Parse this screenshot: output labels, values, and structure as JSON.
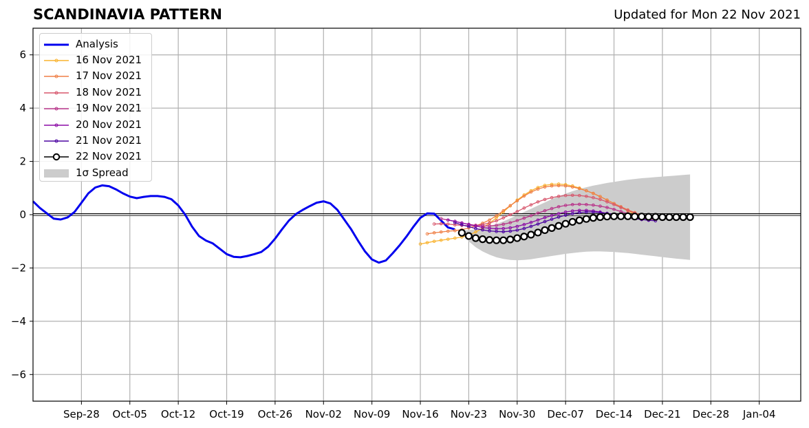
{
  "title": "SCANDINAVIA PATTERN",
  "subtitle": "Updated for Mon 22 Nov 2021",
  "chart_data": {
    "type": "line",
    "xlim": [
      "2021-09-21",
      "2022-01-10"
    ],
    "ylim": [
      -7,
      7
    ],
    "x_ticks": [
      "Sep-28",
      "Oct-05",
      "Oct-12",
      "Oct-19",
      "Oct-26",
      "Nov-02",
      "Nov-09",
      "Nov-16",
      "Nov-23",
      "Nov-30",
      "Dec-07",
      "Dec-14",
      "Dec-21",
      "Dec-28",
      "Jan-04"
    ],
    "x_tick_dates": [
      "2021-09-28",
      "2021-10-05",
      "2021-10-12",
      "2021-10-19",
      "2021-10-26",
      "2021-11-02",
      "2021-11-09",
      "2021-11-16",
      "2021-11-23",
      "2021-11-30",
      "2021-12-07",
      "2021-12-14",
      "2021-12-21",
      "2021-12-28",
      "2022-01-04"
    ],
    "y_ticks": [
      -6,
      -4,
      -2,
      0,
      2,
      4,
      6
    ],
    "y_tick_labels": [
      "−6",
      "−4",
      "−2",
      "0",
      "2",
      "4",
      "6"
    ],
    "grid": true,
    "legend_position": "top-left",
    "zero_line": true,
    "analysis": {
      "name": "Analysis",
      "color": "#0000ee",
      "start": "2021-09-21",
      "values": [
        0.5,
        0.25,
        0.05,
        -0.15,
        -0.18,
        -0.1,
        0.1,
        0.45,
        0.8,
        1.02,
        1.1,
        1.07,
        0.95,
        0.8,
        0.68,
        0.62,
        0.67,
        0.7,
        0.7,
        0.67,
        0.58,
        0.35,
        0.0,
        -0.45,
        -0.8,
        -0.97,
        -1.08,
        -1.28,
        -1.48,
        -1.58,
        -1.6,
        -1.55,
        -1.48,
        -1.4,
        -1.2,
        -0.9,
        -0.55,
        -0.22,
        0.02,
        0.18,
        0.32,
        0.45,
        0.5,
        0.42,
        0.18,
        -0.18,
        -0.55,
        -0.98,
        -1.38,
        -1.68,
        -1.8,
        -1.72,
        -1.45,
        -1.15,
        -0.82,
        -0.45,
        -0.12,
        0.05,
        0.04,
        -0.22,
        -0.48,
        -0.55
      ]
    },
    "spread": {
      "name": "1σ Spread",
      "color": "#cccccc",
      "start": "2021-11-22",
      "upper": [
        -0.6,
        -0.58,
        -0.55,
        -0.5,
        -0.43,
        -0.35,
        -0.25,
        -0.14,
        -0.02,
        0.1,
        0.22,
        0.34,
        0.46,
        0.58,
        0.69,
        0.79,
        0.88,
        0.96,
        1.03,
        1.09,
        1.14,
        1.19,
        1.23,
        1.27,
        1.31,
        1.34,
        1.37,
        1.39,
        1.41,
        1.43,
        1.45,
        1.47,
        1.49,
        1.51
      ],
      "lower": [
        -0.7,
        -1.0,
        -1.22,
        -1.38,
        -1.5,
        -1.6,
        -1.66,
        -1.7,
        -1.71,
        -1.7,
        -1.67,
        -1.63,
        -1.59,
        -1.55,
        -1.51,
        -1.47,
        -1.44,
        -1.41,
        -1.39,
        -1.38,
        -1.38,
        -1.39,
        -1.4,
        -1.42,
        -1.44,
        -1.47,
        -1.5,
        -1.53,
        -1.56,
        -1.59,
        -1.62,
        -1.65,
        -1.67,
        -1.7
      ]
    },
    "series": [
      {
        "name": "16 Nov 2021",
        "color": "#f9b32f",
        "start": "2021-11-16",
        "values": [
          -1.1,
          -1.05,
          -1.0,
          -0.96,
          -0.92,
          -0.88,
          -0.84,
          -0.77,
          -0.65,
          -0.5,
          -0.32,
          -0.12,
          0.1,
          0.33,
          0.55,
          0.74,
          0.9,
          1.02,
          1.1,
          1.14,
          1.15,
          1.13,
          1.08,
          1.0,
          0.9,
          0.8,
          0.68,
          0.55,
          0.42,
          0.28,
          0.14,
          0.02,
          -0.06
        ]
      },
      {
        "name": "17 Nov 2021",
        "color": "#ef7f45",
        "start": "2021-11-17",
        "values": [
          -0.72,
          -0.68,
          -0.65,
          -0.62,
          -0.6,
          -0.56,
          -0.5,
          -0.42,
          -0.32,
          -0.2,
          -0.04,
          0.15,
          0.34,
          0.52,
          0.7,
          0.85,
          0.96,
          1.04,
          1.08,
          1.09,
          1.08,
          1.04,
          0.98,
          0.9,
          0.8,
          0.68,
          0.55,
          0.42,
          0.3,
          0.18,
          0.08,
          -0.03
        ]
      },
      {
        "name": "18 Nov 2021",
        "color": "#d7566c",
        "start": "2021-11-18",
        "values": [
          -0.35,
          -0.34,
          -0.35,
          -0.38,
          -0.4,
          -0.41,
          -0.4,
          -0.37,
          -0.31,
          -0.23,
          -0.12,
          0.0,
          0.12,
          0.25,
          0.37,
          0.48,
          0.57,
          0.64,
          0.69,
          0.72,
          0.73,
          0.72,
          0.69,
          0.64,
          0.57,
          0.48,
          0.38,
          0.27,
          0.16,
          0.06,
          -0.03
        ]
      },
      {
        "name": "19 Nov 2021",
        "color": "#b83289",
        "start": "2021-11-19",
        "values": [
          -0.15,
          -0.2,
          -0.25,
          -0.31,
          -0.36,
          -0.4,
          -0.42,
          -0.42,
          -0.4,
          -0.36,
          -0.3,
          -0.22,
          -0.13,
          -0.04,
          0.06,
          0.15,
          0.23,
          0.3,
          0.35,
          0.38,
          0.39,
          0.38,
          0.36,
          0.32,
          0.27,
          0.2,
          0.12,
          0.04,
          -0.04,
          -0.11,
          -0.16,
          -0.18
        ]
      },
      {
        "name": "20 Nov 2021",
        "color": "#8b0aa5",
        "start": "2021-11-20",
        "values": [
          -0.2,
          -0.25,
          -0.31,
          -0.37,
          -0.43,
          -0.48,
          -0.51,
          -0.53,
          -0.52,
          -0.49,
          -0.44,
          -0.37,
          -0.29,
          -0.2,
          -0.11,
          -0.03,
          0.04,
          0.1,
          0.14,
          0.16,
          0.16,
          0.14,
          0.1,
          0.05,
          0.0,
          -0.06,
          -0.11,
          -0.15,
          -0.18,
          -0.2
        ]
      },
      {
        "name": "21 Nov 2021",
        "color": "#4b03a1",
        "start": "2021-11-21",
        "values": [
          -0.3,
          -0.38,
          -0.45,
          -0.52,
          -0.57,
          -0.61,
          -0.63,
          -0.64,
          -0.62,
          -0.58,
          -0.52,
          -0.44,
          -0.35,
          -0.26,
          -0.17,
          -0.09,
          -0.02,
          0.04,
          0.08,
          0.1,
          0.1,
          0.08,
          0.05,
          0.01,
          -0.04,
          -0.09,
          -0.14,
          -0.18,
          -0.21,
          -0.23
        ]
      },
      {
        "name": "22 Nov 2021",
        "color": "#000000",
        "start": "2021-11-22",
        "marker": "open-circle",
        "values": [
          -0.68,
          -0.8,
          -0.88,
          -0.92,
          -0.95,
          -0.96,
          -0.96,
          -0.93,
          -0.88,
          -0.82,
          -0.75,
          -0.67,
          -0.58,
          -0.5,
          -0.42,
          -0.34,
          -0.27,
          -0.21,
          -0.16,
          -0.12,
          -0.09,
          -0.07,
          -0.06,
          -0.06,
          -0.06,
          -0.07,
          -0.07,
          -0.08,
          -0.08,
          -0.09,
          -0.09,
          -0.09,
          -0.09,
          -0.09
        ]
      }
    ]
  }
}
